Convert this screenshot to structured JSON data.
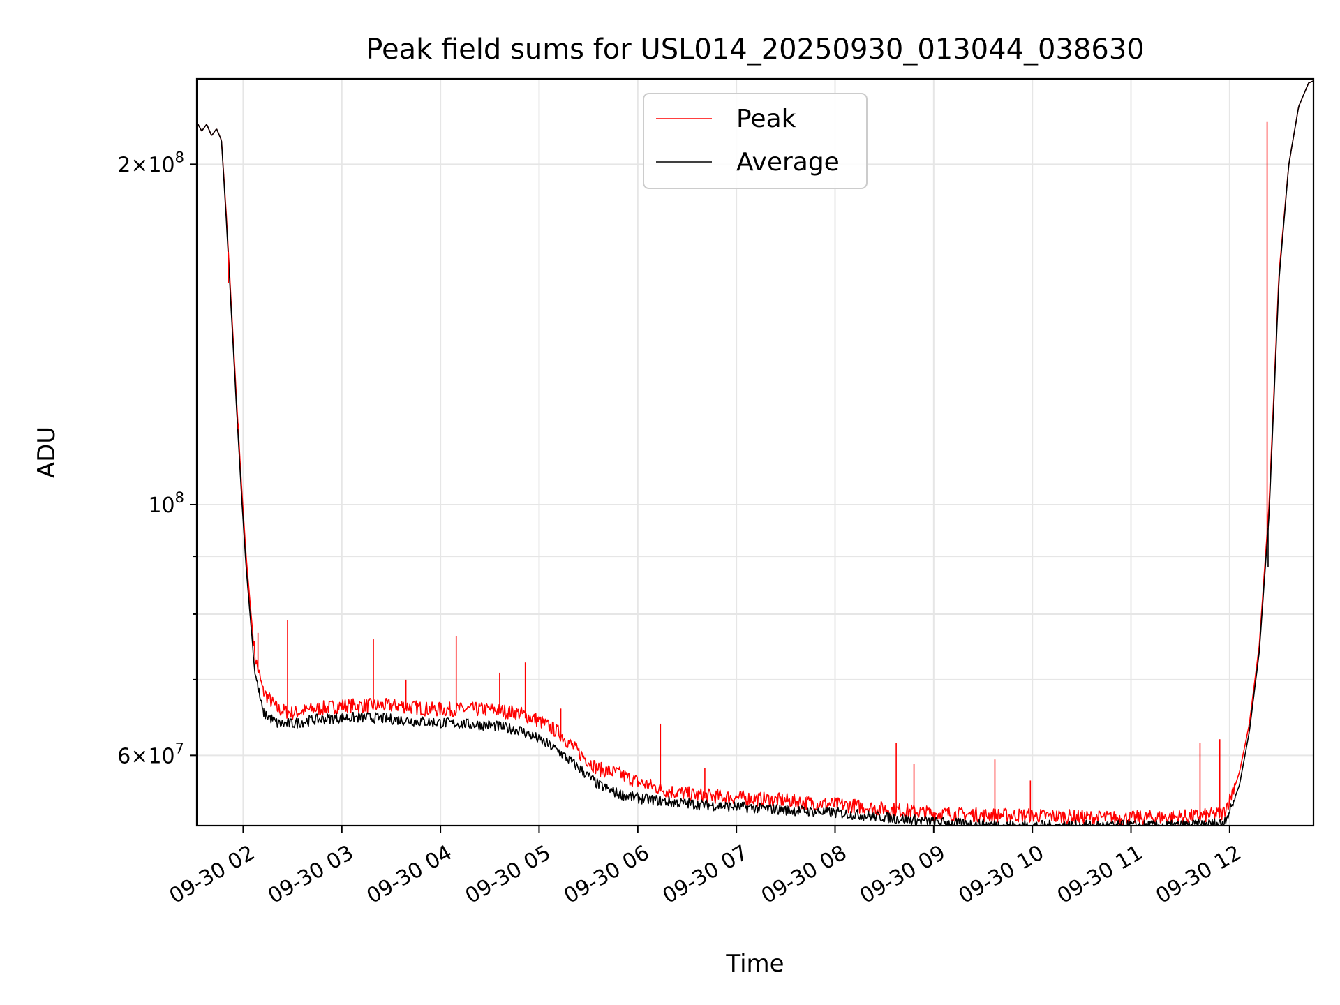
{
  "chart_data": {
    "type": "line",
    "title": "Peak field sums for USL014_20250930_013044_038630",
    "xlabel": "Time",
    "ylabel": "ADU",
    "yscale": "log",
    "xlim_hours": [
      1.53,
      12.85
    ],
    "ylim": [
      52000000,
      238000000
    ],
    "x_ticks": [
      {
        "h": 2,
        "label": "09-30 02"
      },
      {
        "h": 3,
        "label": "09-30 03"
      },
      {
        "h": 4,
        "label": "09-30 04"
      },
      {
        "h": 5,
        "label": "09-30 05"
      },
      {
        "h": 6,
        "label": "09-30 06"
      },
      {
        "h": 7,
        "label": "09-30 07"
      },
      {
        "h": 8,
        "label": "09-30 08"
      },
      {
        "h": 9,
        "label": "09-30 09"
      },
      {
        "h": 10,
        "label": "09-30 10"
      },
      {
        "h": 11,
        "label": "09-30 11"
      },
      {
        "h": 12,
        "label": "09-30 12"
      }
    ],
    "y_ticks": [
      {
        "value": 60000000,
        "mantissa": "6",
        "exp": "7"
      },
      {
        "value": 100000000,
        "mantissa": "",
        "exp": "8"
      },
      {
        "value": 200000000,
        "mantissa": "2",
        "exp": "8"
      }
    ],
    "y_minor_ticks": [
      70000000,
      80000000,
      90000000
    ],
    "grid": true,
    "legend": {
      "position": "top-center",
      "entries": [
        "Peak",
        "Average"
      ]
    },
    "series": [
      {
        "name": "Peak",
        "color": "#ff0000",
        "x": [
          1.53,
          1.58,
          1.63,
          1.68,
          1.73,
          1.78,
          1.83,
          1.88,
          1.93,
          1.98,
          2.03,
          2.08,
          2.12,
          2.2,
          2.35,
          2.5,
          2.7,
          3.0,
          3.3,
          3.6,
          3.9,
          4.2,
          4.5,
          4.8,
          5.0,
          5.2,
          5.4,
          5.6,
          5.8,
          6.0,
          6.3,
          6.6,
          6.9,
          7.2,
          7.5,
          7.8,
          8.1,
          8.4,
          8.7,
          9.0,
          9.3,
          9.6,
          9.9,
          10.2,
          10.5,
          10.8,
          11.1,
          11.4,
          11.7,
          11.93,
          12.0,
          12.1,
          12.2,
          12.3,
          12.4,
          12.5,
          12.6,
          12.7,
          12.8,
          12.85
        ],
        "y": [
          218000000,
          214000000,
          217000000,
          212000000,
          215000000,
          210000000,
          180000000,
          150000000,
          125000000,
          105000000,
          90000000,
          80000000,
          73000000,
          68000000,
          65500000,
          65000000,
          65500000,
          66000000,
          66000000,
          66000000,
          65500000,
          65500000,
          65500000,
          65000000,
          64000000,
          62500000,
          60000000,
          58000000,
          57500000,
          56500000,
          55500000,
          55000000,
          54800000,
          54600000,
          54400000,
          54100000,
          53900000,
          53600000,
          53300000,
          53000000,
          52900000,
          52800000,
          52800000,
          52700000,
          52600000,
          52500000,
          52500000,
          52600000,
          52700000,
          53000000,
          54500000,
          58000000,
          64000000,
          75000000,
          100000000,
          160000000,
          200000000,
          225000000,
          236000000,
          237000000
        ]
      },
      {
        "name": "Average",
        "color": "#000000",
        "x": [
          1.53,
          1.58,
          1.63,
          1.68,
          1.73,
          1.78,
          1.83,
          1.88,
          1.93,
          1.98,
          2.03,
          2.08,
          2.12,
          2.2,
          2.35,
          2.5,
          2.7,
          3.0,
          3.3,
          3.6,
          3.9,
          4.2,
          4.5,
          4.8,
          5.0,
          5.2,
          5.4,
          5.6,
          5.8,
          6.0,
          6.3,
          6.6,
          6.9,
          7.2,
          7.5,
          7.8,
          8.1,
          8.4,
          8.7,
          9.0,
          9.3,
          9.6,
          9.9,
          10.2,
          10.5,
          10.8,
          11.1,
          11.4,
          11.7,
          11.93,
          12.0,
          12.1,
          12.2,
          12.3,
          12.4,
          12.5,
          12.6,
          12.7,
          12.8,
          12.85
        ],
        "y": [
          218000000,
          214000000,
          217000000,
          212000000,
          215000000,
          210000000,
          178000000,
          148000000,
          123000000,
          103000000,
          88000000,
          78000000,
          71000000,
          65500000,
          64000000,
          64000000,
          64500000,
          64800000,
          64800000,
          64500000,
          64200000,
          64000000,
          63800000,
          63200000,
          62000000,
          60500000,
          58500000,
          56500000,
          55500000,
          55000000,
          54600000,
          54300000,
          54100000,
          53900000,
          53700000,
          53500000,
          53300000,
          53000000,
          52700000,
          52400000,
          52200000,
          52100000,
          52000000,
          52000000,
          52000000,
          52000000,
          52000000,
          52000000,
          52100000,
          52300000,
          53500000,
          56500000,
          63000000,
          74000000,
          98000000,
          158000000,
          200000000,
          225000000,
          236000000,
          237000000
        ]
      }
    ],
    "spikes": {
      "Peak": [
        {
          "h": 1.85,
          "v": 157000000
        },
        {
          "h": 1.95,
          "v": 118000000
        },
        {
          "h": 2.08,
          "v": 80000000
        },
        {
          "h": 2.15,
          "v": 77000000
        },
        {
          "h": 2.45,
          "v": 79000000
        },
        {
          "h": 3.32,
          "v": 76000000
        },
        {
          "h": 3.65,
          "v": 70000000
        },
        {
          "h": 4.16,
          "v": 76500000
        },
        {
          "h": 4.6,
          "v": 71000000
        },
        {
          "h": 4.86,
          "v": 72500000
        },
        {
          "h": 5.22,
          "v": 66000000
        },
        {
          "h": 6.23,
          "v": 64000000
        },
        {
          "h": 6.68,
          "v": 58500000
        },
        {
          "h": 8.62,
          "v": 61500000
        },
        {
          "h": 8.8,
          "v": 59000000
        },
        {
          "h": 9.62,
          "v": 59500000
        },
        {
          "h": 9.98,
          "v": 57000000
        },
        {
          "h": 11.7,
          "v": 61500000
        },
        {
          "h": 11.9,
          "v": 62000000
        },
        {
          "h": 12.38,
          "v": 218000000
        }
      ],
      "Average": [
        {
          "h": 12.39,
          "v": 88000000
        }
      ]
    }
  }
}
